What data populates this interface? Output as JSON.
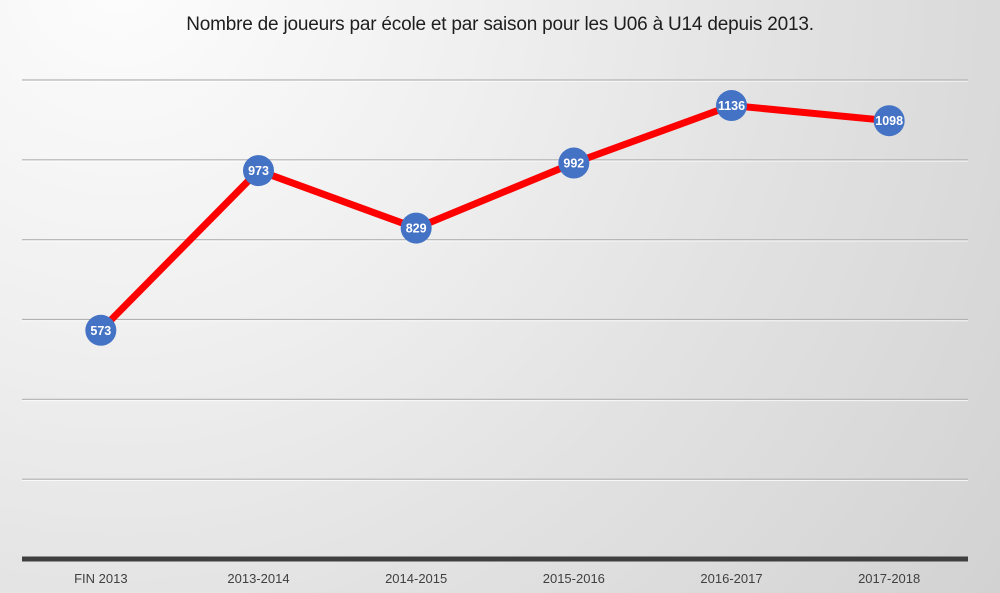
{
  "chart_data": {
    "type": "line",
    "title": "Nombre de joueurs par école et par saison pour les U06 à U14 depuis 2013.",
    "categories": [
      "FIN 2013",
      "2013-2014",
      "2014-2015",
      "2015-2016",
      "2016-2017",
      "2017-2018"
    ],
    "values": [
      573,
      973,
      829,
      992,
      1136,
      1098
    ],
    "value_labels_shown_inside_markers": true,
    "xlabel": "",
    "ylabel": "",
    "ylim": [
      0,
      1200
    ],
    "gridline_step": 200,
    "grid": "horizontal-only",
    "y_tick_labels_visible": false,
    "legend": "none",
    "colors": {
      "line": "#ff0000",
      "marker_fill": "#4472c4",
      "marker_label_text": "#ffffff",
      "axis_line": "#3f3f3f",
      "category_label_text": "#404040",
      "gridline": "#b2b2b2",
      "gridline_highlight": "#ffffff",
      "title_text": "#1e1e1e"
    }
  }
}
